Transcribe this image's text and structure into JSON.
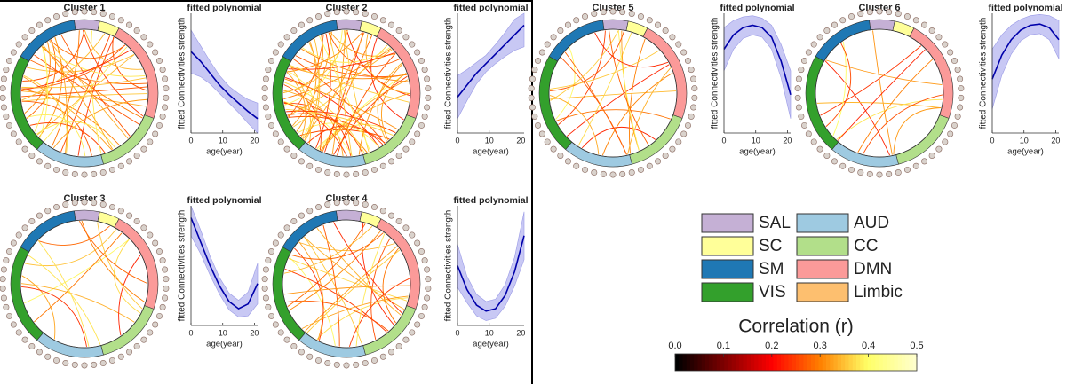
{
  "chart_data": [
    {
      "type": "line",
      "panel_title": "Cluster 1",
      "title": "fitted polynomial",
      "xlabel": "age(year)",
      "ylabel": "fitted Connectivities strength",
      "x": [
        0,
        3,
        6,
        9,
        12,
        15,
        18,
        21
      ],
      "values": [
        0.68,
        0.6,
        0.5,
        0.4,
        0.32,
        0.25,
        0.18,
        0.12
      ],
      "lower": [
        0.5,
        0.47,
        0.41,
        0.33,
        0.25,
        0.17,
        0.08,
        0.0
      ],
      "upper": [
        0.86,
        0.73,
        0.6,
        0.48,
        0.39,
        0.33,
        0.28,
        0.25
      ],
      "xlim": [
        0,
        21
      ],
      "ylim": [
        0,
        1
      ],
      "xticks": [
        0,
        10,
        20
      ],
      "color": "#0000aa",
      "band_color": "#c8c8f4"
    },
    {
      "type": "line",
      "panel_title": "Cluster 2",
      "title": "fitted polynomial",
      "xlabel": "age(year)",
      "ylabel": "fitted Connectivities strength",
      "x": [
        0,
        3,
        6,
        9,
        12,
        15,
        18,
        21
      ],
      "values": [
        0.3,
        0.4,
        0.5,
        0.58,
        0.66,
        0.74,
        0.82,
        0.9
      ],
      "lower": [
        0.12,
        0.27,
        0.41,
        0.51,
        0.58,
        0.64,
        0.69,
        0.72
      ],
      "upper": [
        0.48,
        0.53,
        0.59,
        0.65,
        0.74,
        0.84,
        0.95,
        1.0
      ],
      "xlim": [
        0,
        21
      ],
      "ylim": [
        0,
        1
      ],
      "xticks": [
        0,
        10,
        20
      ],
      "color": "#0000aa",
      "band_color": "#c8c8f4"
    },
    {
      "type": "line",
      "panel_title": "Cluster 3",
      "title": "fitted polynomial",
      "xlabel": "age(year)",
      "ylabel": "fitted Connectivities strength",
      "x": [
        0,
        3,
        6,
        9,
        12,
        15,
        18,
        21
      ],
      "values": [
        0.9,
        0.7,
        0.5,
        0.33,
        0.2,
        0.14,
        0.18,
        0.35
      ],
      "lower": [
        0.75,
        0.6,
        0.42,
        0.26,
        0.13,
        0.07,
        0.08,
        0.18
      ],
      "upper": [
        1.0,
        0.8,
        0.58,
        0.4,
        0.27,
        0.21,
        0.28,
        0.52
      ],
      "xlim": [
        0,
        21
      ],
      "ylim": [
        0,
        1
      ],
      "xticks": [
        0,
        10,
        20
      ],
      "color": "#0000aa",
      "band_color": "#c8c8f4"
    },
    {
      "type": "line",
      "panel_title": "Cluster 4",
      "title": "fitted polynomial",
      "xlabel": "age(year)",
      "ylabel": "fitted Connectivities strength",
      "x": [
        0,
        3,
        6,
        9,
        12,
        15,
        18,
        21
      ],
      "values": [
        0.5,
        0.3,
        0.17,
        0.12,
        0.14,
        0.25,
        0.45,
        0.75
      ],
      "lower": [
        0.32,
        0.19,
        0.08,
        0.04,
        0.06,
        0.16,
        0.33,
        0.55
      ],
      "upper": [
        0.68,
        0.41,
        0.26,
        0.2,
        0.22,
        0.34,
        0.57,
        0.95
      ],
      "xlim": [
        0,
        21
      ],
      "ylim": [
        0,
        1
      ],
      "xticks": [
        0,
        10,
        20
      ],
      "color": "#0000aa",
      "band_color": "#c8c8f4"
    },
    {
      "type": "line",
      "panel_title": "Cluster 5",
      "title": "fitted polynomial",
      "xlabel": "age(year)",
      "ylabel": "fitted Connectivities strength",
      "x": [
        0,
        3,
        6,
        9,
        12,
        15,
        18,
        21
      ],
      "values": [
        0.7,
        0.82,
        0.88,
        0.9,
        0.88,
        0.8,
        0.6,
        0.32
      ],
      "lower": [
        0.52,
        0.7,
        0.79,
        0.82,
        0.8,
        0.7,
        0.46,
        0.12
      ],
      "upper": [
        0.88,
        0.94,
        0.97,
        0.98,
        0.96,
        0.9,
        0.74,
        0.52
      ],
      "xlim": [
        0,
        21
      ],
      "ylim": [
        0,
        1
      ],
      "xticks": [
        0,
        10,
        20
      ],
      "color": "#0000aa",
      "band_color": "#c8c8f4"
    },
    {
      "type": "line",
      "panel_title": "Cluster 6",
      "title": "fitted polynomial",
      "xlabel": "age(year)",
      "ylabel": "fitted Connectivities strength",
      "x": [
        0,
        3,
        6,
        9,
        12,
        15,
        18,
        21
      ],
      "values": [
        0.45,
        0.65,
        0.78,
        0.86,
        0.9,
        0.91,
        0.88,
        0.78
      ],
      "lower": [
        0.2,
        0.48,
        0.66,
        0.77,
        0.82,
        0.83,
        0.78,
        0.62
      ],
      "upper": [
        0.7,
        0.82,
        0.9,
        0.95,
        0.98,
        0.99,
        0.98,
        0.94
      ],
      "xlim": [
        0,
        21
      ],
      "ylim": [
        0,
        1
      ],
      "xticks": [
        0,
        10,
        20
      ],
      "color": "#0000aa",
      "band_color": "#c8c8f4"
    }
  ],
  "legend": {
    "items": [
      {
        "label": "SAL",
        "color": "#c5b0d5"
      },
      {
        "label": "AUD",
        "color": "#9ecae1"
      },
      {
        "label": "SC",
        "color": "#ffff99"
      },
      {
        "label": "CC",
        "color": "#b2df8a"
      },
      {
        "label": "SM",
        "color": "#1f78b4"
      },
      {
        "label": "DMN",
        "color": "#fb9a99"
      },
      {
        "label": "VIS",
        "color": "#33a02c"
      },
      {
        "label": "Limbic",
        "color": "#fdbf6f"
      }
    ]
  },
  "colorbar": {
    "title": "Correlation (r)",
    "lim": [
      0,
      0.5
    ],
    "ticks": [
      {
        "value": 0,
        "label": "0.0"
      },
      {
        "value": 0.1,
        "label": "0.1"
      },
      {
        "value": 0.2,
        "label": "0.2"
      },
      {
        "value": 0.3,
        "label": "0.3"
      },
      {
        "value": 0.4,
        "label": "0.4"
      },
      {
        "value": 0.5,
        "label": "0.5"
      }
    ]
  }
}
